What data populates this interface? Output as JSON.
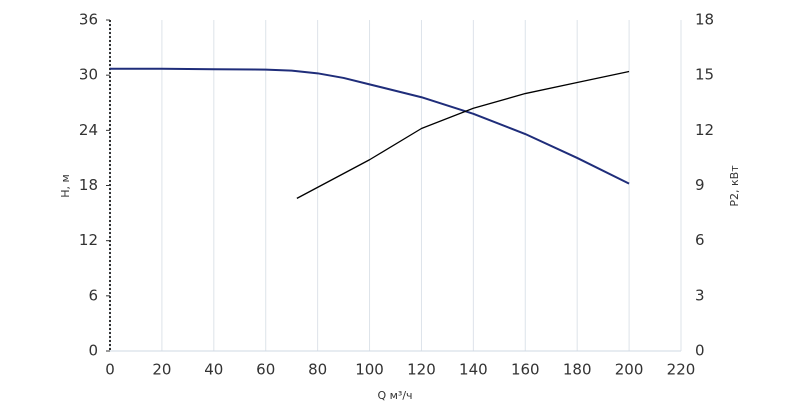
{
  "chart_data": {
    "type": "line",
    "xlabel": "Q м³/ч",
    "ylabel": "H, м",
    "y2label": "P2, кВт",
    "xlim": [
      0,
      220
    ],
    "xticks": [
      0,
      20,
      40,
      60,
      80,
      100,
      120,
      140,
      160,
      180,
      200,
      220
    ],
    "ylim": [
      0,
      36
    ],
    "yticks": [
      0,
      6,
      12,
      18,
      24,
      30,
      36
    ],
    "y2lim": [
      0,
      18
    ],
    "y2ticks": [
      0,
      3,
      6,
      9,
      12,
      15,
      18
    ],
    "grid": true,
    "series": [
      {
        "name": "H",
        "color": "#1f2d7a",
        "axis": "y",
        "x": [
          0,
          20,
          40,
          60,
          70,
          80,
          90,
          100,
          120,
          140,
          160,
          180,
          200
        ],
        "values": [
          30.7,
          30.7,
          30.65,
          30.6,
          30.5,
          30.2,
          29.7,
          29.0,
          27.6,
          25.8,
          23.6,
          21.0,
          18.2
        ]
      },
      {
        "name": "P2",
        "color": "#000000",
        "axis": "y2",
        "x": [
          72,
          100,
          120,
          140,
          160,
          180,
          200
        ],
        "values": [
          8.3,
          10.4,
          12.1,
          13.2,
          14.0,
          14.6,
          15.2
        ]
      }
    ]
  }
}
